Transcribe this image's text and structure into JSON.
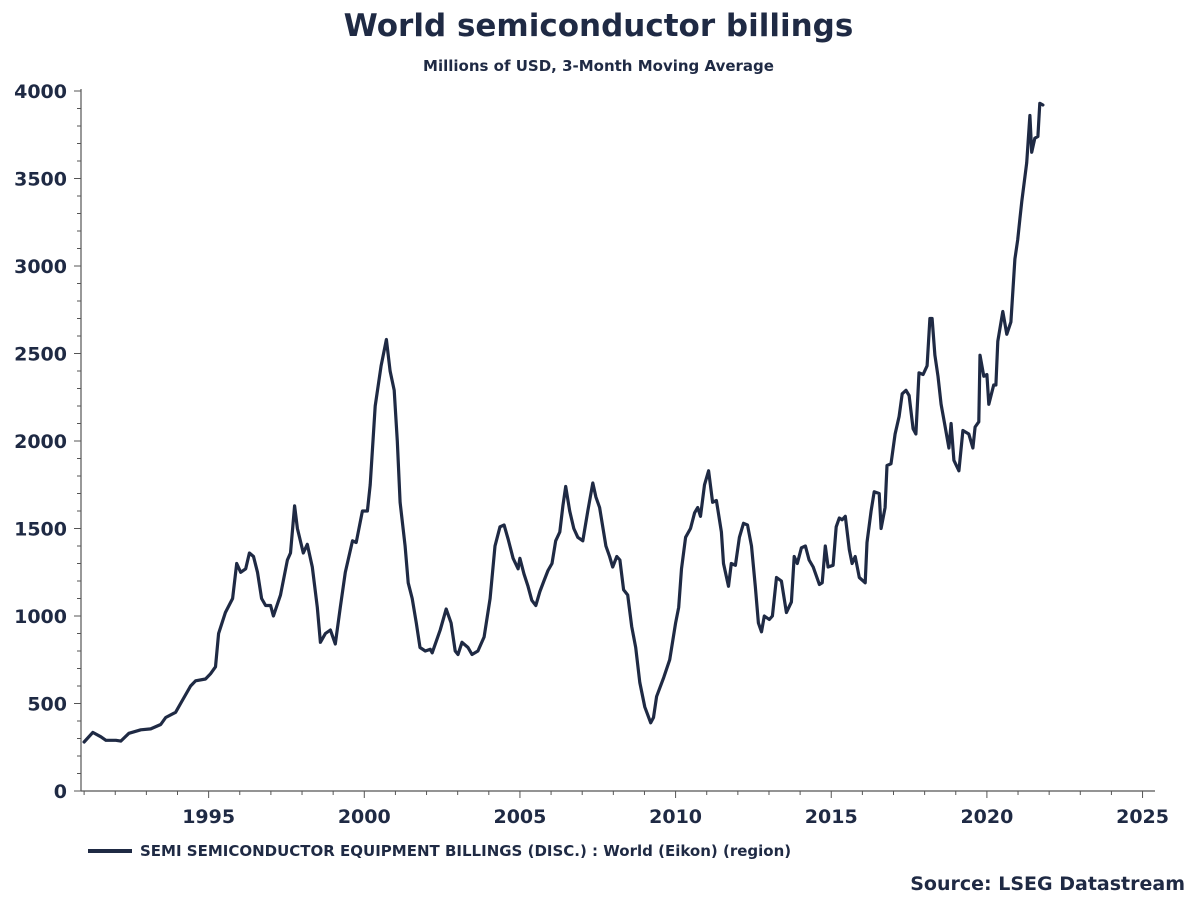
{
  "chart_data": {
    "type": "line",
    "title": "World semiconductor billings",
    "subtitle": "Millions of USD, 3-Month Moving Average",
    "xlabel": "",
    "ylabel": "",
    "xlim": [
      1990.9,
      2025.4
    ],
    "ylim": [
      0,
      4000
    ],
    "x_ticks": [
      1995,
      2000,
      2005,
      2010,
      2015,
      2020,
      2025
    ],
    "y_ticks": [
      0,
      500,
      1000,
      1500,
      2000,
      2500,
      3000,
      3500,
      4000
    ],
    "grid": false,
    "legend_position": "bottom-left",
    "line_color": "#1f2a44",
    "series": [
      {
        "name": "SEMI SEMICONDUCTOR EQUIPMENT BILLINGS (DISC.) : World (Eikon) (region)",
        "points": [
          [
            1991.0,
            280
          ],
          [
            1991.28,
            335
          ],
          [
            1991.54,
            310
          ],
          [
            1991.7,
            290
          ],
          [
            1992.02,
            290
          ],
          [
            1992.18,
            285
          ],
          [
            1992.44,
            330
          ],
          [
            1992.82,
            350
          ],
          [
            1993.14,
            355
          ],
          [
            1993.46,
            380
          ],
          [
            1993.62,
            420
          ],
          [
            1993.94,
            450
          ],
          [
            1994.1,
            500
          ],
          [
            1994.42,
            600
          ],
          [
            1994.58,
            630
          ],
          [
            1994.9,
            640
          ],
          [
            1995.06,
            670
          ],
          [
            1995.22,
            710
          ],
          [
            1995.32,
            900
          ],
          [
            1995.54,
            1020
          ],
          [
            1995.77,
            1100
          ],
          [
            1995.9,
            1300
          ],
          [
            1996.03,
            1250
          ],
          [
            1996.19,
            1270
          ],
          [
            1996.31,
            1360
          ],
          [
            1996.44,
            1340
          ],
          [
            1996.57,
            1250
          ],
          [
            1996.7,
            1100
          ],
          [
            1996.83,
            1060
          ],
          [
            1996.99,
            1060
          ],
          [
            1997.08,
            1000
          ],
          [
            1997.31,
            1120
          ],
          [
            1997.53,
            1320
          ],
          [
            1997.63,
            1360
          ],
          [
            1997.76,
            1630
          ],
          [
            1997.85,
            1500
          ],
          [
            1998.04,
            1360
          ],
          [
            1998.17,
            1410
          ],
          [
            1998.33,
            1280
          ],
          [
            1998.49,
            1050
          ],
          [
            1998.59,
            850
          ],
          [
            1998.75,
            900
          ],
          [
            1998.91,
            920
          ],
          [
            1999.07,
            840
          ],
          [
            1999.23,
            1050
          ],
          [
            1999.39,
            1250
          ],
          [
            1999.62,
            1430
          ],
          [
            1999.74,
            1420
          ],
          [
            1999.94,
            1600
          ],
          [
            2000.1,
            1600
          ],
          [
            2000.19,
            1750
          ],
          [
            2000.35,
            2200
          ],
          [
            2000.54,
            2430
          ],
          [
            2000.71,
            2580
          ],
          [
            2000.83,
            2400
          ],
          [
            2000.96,
            2290
          ],
          [
            2001.06,
            2000
          ],
          [
            2001.15,
            1650
          ],
          [
            2001.31,
            1400
          ],
          [
            2001.41,
            1190
          ],
          [
            2001.54,
            1100
          ],
          [
            2001.67,
            960
          ],
          [
            2001.79,
            820
          ],
          [
            2001.96,
            800
          ],
          [
            2002.12,
            810
          ],
          [
            2002.18,
            790
          ],
          [
            2002.44,
            920
          ],
          [
            2002.63,
            1040
          ],
          [
            2002.79,
            960
          ],
          [
            2002.92,
            800
          ],
          [
            2003.01,
            780
          ],
          [
            2003.14,
            850
          ],
          [
            2003.33,
            820
          ],
          [
            2003.46,
            780
          ],
          [
            2003.65,
            800
          ],
          [
            2003.85,
            880
          ],
          [
            2004.04,
            1100
          ],
          [
            2004.2,
            1400
          ],
          [
            2004.36,
            1510
          ],
          [
            2004.49,
            1520
          ],
          [
            2004.62,
            1440
          ],
          [
            2004.78,
            1330
          ],
          [
            2004.94,
            1270
          ],
          [
            2005.0,
            1330
          ],
          [
            2005.13,
            1240
          ],
          [
            2005.26,
            1170
          ],
          [
            2005.38,
            1090
          ],
          [
            2005.51,
            1060
          ],
          [
            2005.64,
            1140
          ],
          [
            2005.77,
            1200
          ],
          [
            2005.9,
            1260
          ],
          [
            2006.03,
            1300
          ],
          [
            2006.15,
            1430
          ],
          [
            2006.28,
            1480
          ],
          [
            2006.38,
            1630
          ],
          [
            2006.47,
            1740
          ],
          [
            2006.6,
            1600
          ],
          [
            2006.73,
            1500
          ],
          [
            2006.86,
            1450
          ],
          [
            2007.02,
            1430
          ],
          [
            2007.18,
            1600
          ],
          [
            2007.34,
            1760
          ],
          [
            2007.44,
            1680
          ],
          [
            2007.56,
            1620
          ],
          [
            2007.76,
            1400
          ],
          [
            2007.88,
            1340
          ],
          [
            2007.98,
            1280
          ],
          [
            2008.11,
            1340
          ],
          [
            2008.21,
            1320
          ],
          [
            2008.33,
            1150
          ],
          [
            2008.46,
            1120
          ],
          [
            2008.59,
            940
          ],
          [
            2008.72,
            820
          ],
          [
            2008.85,
            620
          ],
          [
            2009.01,
            480
          ],
          [
            2009.2,
            390
          ],
          [
            2009.29,
            420
          ],
          [
            2009.39,
            540
          ],
          [
            2009.62,
            650
          ],
          [
            2009.81,
            750
          ],
          [
            2010.0,
            960
          ],
          [
            2010.1,
            1050
          ],
          [
            2010.19,
            1270
          ],
          [
            2010.32,
            1450
          ],
          [
            2010.48,
            1500
          ],
          [
            2010.61,
            1590
          ],
          [
            2010.71,
            1620
          ],
          [
            2010.8,
            1570
          ],
          [
            2010.93,
            1750
          ],
          [
            2011.06,
            1830
          ],
          [
            2011.19,
            1650
          ],
          [
            2011.31,
            1660
          ],
          [
            2011.47,
            1480
          ],
          [
            2011.54,
            1300
          ],
          [
            2011.7,
            1170
          ],
          [
            2011.79,
            1300
          ],
          [
            2011.92,
            1290
          ],
          [
            2012.05,
            1450
          ],
          [
            2012.18,
            1530
          ],
          [
            2012.31,
            1520
          ],
          [
            2012.44,
            1400
          ],
          [
            2012.56,
            1170
          ],
          [
            2012.66,
            960
          ],
          [
            2012.76,
            910
          ],
          [
            2012.85,
            1000
          ],
          [
            2013.01,
            980
          ],
          [
            2013.11,
            1000
          ],
          [
            2013.24,
            1220
          ],
          [
            2013.4,
            1200
          ],
          [
            2013.56,
            1020
          ],
          [
            2013.72,
            1080
          ],
          [
            2013.81,
            1340
          ],
          [
            2013.91,
            1300
          ],
          [
            2014.04,
            1390
          ],
          [
            2014.17,
            1400
          ],
          [
            2014.29,
            1320
          ],
          [
            2014.42,
            1280
          ],
          [
            2014.62,
            1180
          ],
          [
            2014.71,
            1190
          ],
          [
            2014.81,
            1400
          ],
          [
            2014.9,
            1280
          ],
          [
            2015.06,
            1290
          ],
          [
            2015.16,
            1510
          ],
          [
            2015.26,
            1560
          ],
          [
            2015.35,
            1550
          ],
          [
            2015.45,
            1570
          ],
          [
            2015.58,
            1380
          ],
          [
            2015.67,
            1300
          ],
          [
            2015.77,
            1340
          ],
          [
            2015.9,
            1220
          ],
          [
            2016.09,
            1190
          ],
          [
            2016.15,
            1420
          ],
          [
            2016.28,
            1600
          ],
          [
            2016.38,
            1710
          ],
          [
            2016.54,
            1700
          ],
          [
            2016.6,
            1500
          ],
          [
            2016.73,
            1620
          ],
          [
            2016.79,
            1860
          ],
          [
            2016.92,
            1870
          ],
          [
            2017.05,
            2040
          ],
          [
            2017.18,
            2140
          ],
          [
            2017.28,
            2270
          ],
          [
            2017.4,
            2290
          ],
          [
            2017.5,
            2260
          ],
          [
            2017.63,
            2070
          ],
          [
            2017.72,
            2040
          ],
          [
            2017.82,
            2390
          ],
          [
            2017.95,
            2380
          ],
          [
            2018.08,
            2430
          ],
          [
            2018.17,
            2700
          ],
          [
            2018.24,
            2700
          ],
          [
            2018.33,
            2490
          ],
          [
            2018.43,
            2370
          ],
          [
            2018.53,
            2210
          ],
          [
            2018.65,
            2090
          ],
          [
            2018.78,
            1960
          ],
          [
            2018.85,
            2100
          ],
          [
            2018.94,
            1890
          ],
          [
            2019.1,
            1830
          ],
          [
            2019.23,
            2060
          ],
          [
            2019.42,
            2040
          ],
          [
            2019.55,
            1960
          ],
          [
            2019.62,
            2080
          ],
          [
            2019.74,
            2110
          ],
          [
            2019.78,
            2490
          ],
          [
            2019.9,
            2370
          ],
          [
            2020.0,
            2380
          ],
          [
            2020.06,
            2210
          ],
          [
            2020.22,
            2320
          ],
          [
            2020.29,
            2320
          ],
          [
            2020.35,
            2570
          ],
          [
            2020.51,
            2740
          ],
          [
            2020.64,
            2610
          ],
          [
            2020.77,
            2680
          ],
          [
            2020.9,
            3040
          ],
          [
            2020.99,
            3150
          ],
          [
            2021.06,
            3270
          ],
          [
            2021.12,
            3370
          ],
          [
            2021.28,
            3590
          ],
          [
            2021.38,
            3860
          ],
          [
            2021.44,
            3650
          ],
          [
            2021.54,
            3730
          ],
          [
            2021.64,
            3740
          ],
          [
            2021.7,
            3930
          ],
          [
            2021.8,
            3920
          ]
        ]
      }
    ],
    "source": "Source: LSEG Datastream"
  }
}
